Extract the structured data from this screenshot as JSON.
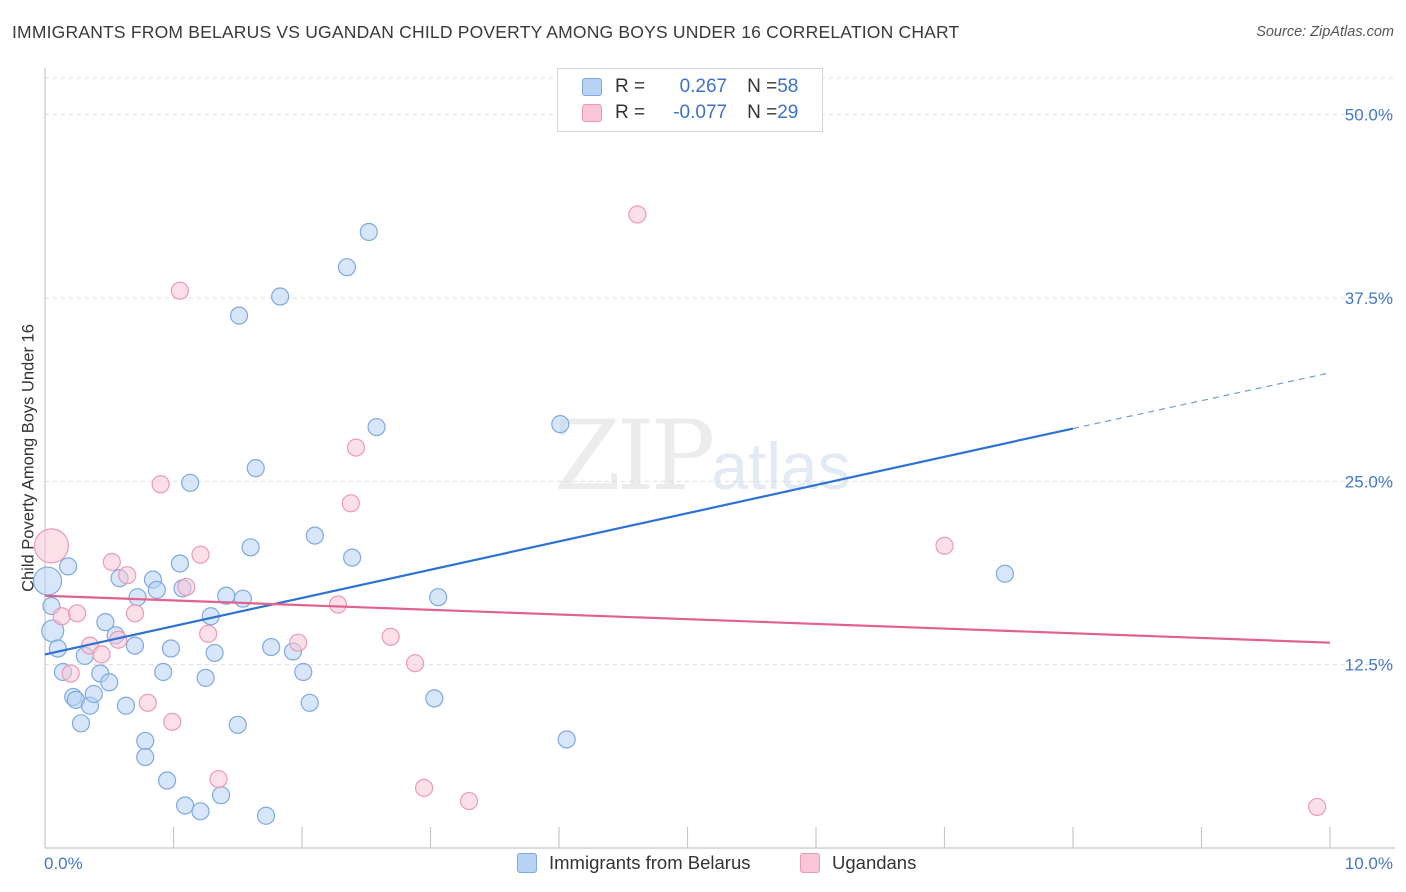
{
  "title": "IMMIGRANTS FROM BELARUS VS UGANDAN CHILD POVERTY AMONG BOYS UNDER 16 CORRELATION CHART",
  "source": "Source: ZipAtlas.com",
  "watermark": {
    "zip": "ZIP",
    "atlas": "atlas"
  },
  "legend": {
    "rows": [
      {
        "r_label": "R = ",
        "r_value": "0.267",
        "n_label": "N = ",
        "n_value": "58"
      },
      {
        "r_label": "R = ",
        "r_value": "-0.077",
        "n_label": "N = ",
        "n_value": "29"
      }
    ]
  },
  "bottom_legend": [
    "Immigrants from Belarus",
    "Ugandans"
  ],
  "colors": {
    "blue_fill": "#b7d2f3",
    "blue_stroke": "#7fa9e0",
    "blue_line": "#2e72d2",
    "pink_fill": "#f8c6d6",
    "pink_stroke": "#ec9ab5",
    "pink_line": "#e0628d",
    "tick_text": "#4478c8",
    "grid": "#dddddd"
  },
  "chart_data": {
    "type": "scatter",
    "title": "IMMIGRANTS FROM BELARUS VS UGANDAN CHILD POVERTY AMONG BOYS UNDER 16 CORRELATION CHART",
    "xlabel": "",
    "ylabel": "Child Poverty Among Boys Under 16",
    "xlim": [
      0,
      10
    ],
    "ylim": [
      0,
      50
    ],
    "x_tick_labels": [
      "0.0%",
      "10.0%"
    ],
    "y_ticks": [
      12.5,
      25.0,
      37.5,
      50.0
    ],
    "y_tick_labels": [
      "12.5%",
      "25.0%",
      "37.5%",
      "50.0%"
    ],
    "grid": "horizontal dashed",
    "legend_position": "top-center",
    "series": [
      {
        "name": "Immigrants from Belarus",
        "points": [
          [
            0.02,
            18.2
          ],
          [
            0.06,
            14.8
          ],
          [
            0.1,
            13.6
          ],
          [
            0.14,
            12.0
          ],
          [
            0.18,
            19.2
          ],
          [
            0.22,
            10.3
          ],
          [
            0.24,
            10.1
          ],
          [
            0.28,
            8.5
          ],
          [
            0.31,
            13.1
          ],
          [
            0.35,
            9.7
          ],
          [
            0.38,
            10.5
          ],
          [
            0.43,
            11.9
          ],
          [
            0.47,
            15.4
          ],
          [
            0.5,
            11.3
          ],
          [
            0.55,
            14.5
          ],
          [
            0.58,
            18.4
          ],
          [
            0.63,
            9.7
          ],
          [
            0.7,
            13.8
          ],
          [
            0.72,
            17.1
          ],
          [
            0.78,
            7.3
          ],
          [
            0.78,
            6.2
          ],
          [
            0.84,
            18.3
          ],
          [
            0.87,
            17.6
          ],
          [
            0.92,
            12.0
          ],
          [
            0.95,
            4.6
          ],
          [
            0.98,
            13.6
          ],
          [
            1.05,
            19.4
          ],
          [
            1.07,
            17.7
          ],
          [
            1.09,
            2.9
          ],
          [
            1.13,
            24.9
          ],
          [
            1.21,
            2.5
          ],
          [
            1.25,
            11.6
          ],
          [
            1.29,
            15.8
          ],
          [
            1.32,
            13.3
          ],
          [
            1.37,
            3.6
          ],
          [
            1.41,
            17.2
          ],
          [
            1.5,
            8.4
          ],
          [
            1.51,
            36.3
          ],
          [
            1.54,
            17.0
          ],
          [
            1.6,
            20.5
          ],
          [
            1.64,
            25.9
          ],
          [
            1.72,
            2.2
          ],
          [
            1.76,
            13.7
          ],
          [
            1.83,
            37.6
          ],
          [
            1.93,
            13.4
          ],
          [
            2.01,
            12.0
          ],
          [
            2.06,
            9.9
          ],
          [
            2.1,
            21.3
          ],
          [
            2.35,
            39.6
          ],
          [
            2.39,
            19.8
          ],
          [
            2.52,
            42.0
          ],
          [
            2.58,
            28.7
          ],
          [
            3.03,
            10.2
          ],
          [
            3.06,
            17.1
          ],
          [
            4.01,
            28.9
          ],
          [
            4.06,
            7.4
          ],
          [
            7.47,
            18.7
          ],
          [
            0.05,
            16.5
          ]
        ],
        "trend": {
          "x": [
            0,
            8.0
          ],
          "y": [
            13.2,
            28.6
          ],
          "dashed_to": [
            10.0,
            32.4
          ]
        }
      },
      {
        "name": "Ugandans",
        "points": [
          [
            0.05,
            20.6
          ],
          [
            0.13,
            15.8
          ],
          [
            0.2,
            11.9
          ],
          [
            0.25,
            16.0
          ],
          [
            0.35,
            13.8
          ],
          [
            0.44,
            13.2
          ],
          [
            0.52,
            19.5
          ],
          [
            0.57,
            14.2
          ],
          [
            0.64,
            18.6
          ],
          [
            0.7,
            16.0
          ],
          [
            0.8,
            9.9
          ],
          [
            0.9,
            24.8
          ],
          [
            0.99,
            8.6
          ],
          [
            1.05,
            38.0
          ],
          [
            1.1,
            17.8
          ],
          [
            1.21,
            20.0
          ],
          [
            1.27,
            14.6
          ],
          [
            1.35,
            4.7
          ],
          [
            1.97,
            14.0
          ],
          [
            2.28,
            16.6
          ],
          [
            2.38,
            23.5
          ],
          [
            2.42,
            27.3
          ],
          [
            2.69,
            14.4
          ],
          [
            2.88,
            12.6
          ],
          [
            2.95,
            4.1
          ],
          [
            3.3,
            3.2
          ],
          [
            4.61,
            43.2
          ],
          [
            7.0,
            20.6
          ],
          [
            9.9,
            2.8
          ]
        ],
        "trend": {
          "x": [
            0,
            10.0
          ],
          "y": [
            17.2,
            14.0
          ]
        }
      }
    ]
  }
}
